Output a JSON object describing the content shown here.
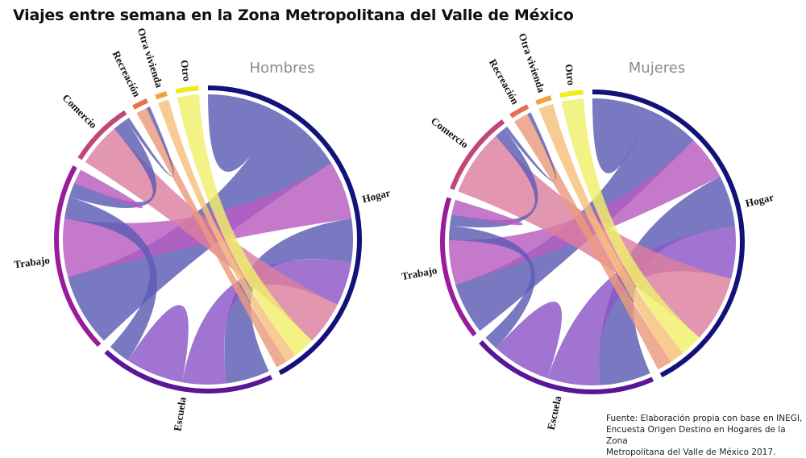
{
  "title": "Viajes entre semana en la Zona Metropolitana del Valle de México",
  "source": {
    "line1": "Fuente: Elaboración propia con base en INEGI,",
    "line2": "Encuesta Origen Destino en Hogares de la Zona",
    "line3": "Metropolitana del Valle de México 2017."
  },
  "chart_data": [
    {
      "type": "chord",
      "title": "Hombres",
      "sectors": [
        {
          "name": "Hogar",
          "ring": "#12127a",
          "chord": "#5c5cb4"
        },
        {
          "name": "Escuela",
          "ring": "#5a1699",
          "chord": "#8c55c8"
        },
        {
          "name": "Trabajo",
          "ring": "#9a1c9c",
          "chord": "#b85cc0"
        },
        {
          "name": "Comercio",
          "ring": "#c4457a",
          "chord": "#dc7f9f"
        },
        {
          "name": "Recreación",
          "ring": "#e8714c",
          "chord": "#ec9a7c"
        },
        {
          "name": "Otra vivienda",
          "ring": "#f4a233",
          "chord": "#f7c07a"
        },
        {
          "name": "Otro",
          "ring": "#eeee1e",
          "chord": "#efef6a"
        }
      ],
      "chords": [
        {
          "from": "Hogar",
          "to": "Hogar",
          "value": 5,
          "color": "Hogar"
        },
        {
          "from": "Hogar",
          "to": "Trabajo",
          "value": 10,
          "color": "Hogar"
        },
        {
          "from": "Trabajo",
          "to": "Hogar",
          "value": 8,
          "color": "Trabajo"
        },
        {
          "from": "Hogar",
          "to": "Escuela",
          "value": 6,
          "color": "Hogar"
        },
        {
          "from": "Escuela",
          "to": "Hogar",
          "value": 6,
          "color": "Escuela"
        },
        {
          "from": "Hogar",
          "to": "Comercio",
          "value": 6,
          "color": "Comercio"
        },
        {
          "from": "Hogar",
          "to": "Otro",
          "value": 3,
          "color": "Otro"
        },
        {
          "from": "Hogar",
          "to": "Otra vivienda",
          "value": 1.5,
          "color": "Otra vivienda"
        },
        {
          "from": "Hogar",
          "to": "Recreación",
          "value": 1.5,
          "color": "Recreación"
        },
        {
          "from": "Escuela",
          "to": "Escuela",
          "value": 4,
          "color": "Escuela"
        },
        {
          "from": "Trabajo",
          "to": "Escuela",
          "value": 3,
          "color": "Hogar"
        },
        {
          "from": "Trabajo",
          "to": "Comercio",
          "value": 2,
          "color": "Hogar"
        },
        {
          "from": "Trabajo",
          "to": "Trabajo",
          "value": 1,
          "color": "Trabajo"
        },
        {
          "from": "Comercio",
          "to": "Recreación",
          "value": 0.5,
          "color": "Hogar"
        }
      ]
    },
    {
      "type": "chord",
      "title": "Mujeres",
      "sectors": [
        {
          "name": "Hogar",
          "ring": "#12127a",
          "chord": "#5c5cb4"
        },
        {
          "name": "Escuela",
          "ring": "#5a1699",
          "chord": "#8c55c8"
        },
        {
          "name": "Trabajo",
          "ring": "#9a1c9c",
          "chord": "#b85cc0"
        },
        {
          "name": "Comercio",
          "ring": "#c4457a",
          "chord": "#dc7f9f"
        },
        {
          "name": "Recreación",
          "ring": "#e8714c",
          "chord": "#ec9a7c"
        },
        {
          "name": "Otra vivienda",
          "ring": "#f4a233",
          "chord": "#f7c07a"
        },
        {
          "name": "Otro",
          "ring": "#eeee1e",
          "chord": "#efef6a"
        }
      ],
      "chords": [
        {
          "from": "Hogar",
          "to": "Hogar",
          "value": 4,
          "color": "Hogar"
        },
        {
          "from": "Hogar",
          "to": "Trabajo",
          "value": 7,
          "color": "Hogar"
        },
        {
          "from": "Trabajo",
          "to": "Hogar",
          "value": 6,
          "color": "Trabajo"
        },
        {
          "from": "Hogar",
          "to": "Escuela",
          "value": 7,
          "color": "Hogar"
        },
        {
          "from": "Escuela",
          "to": "Hogar",
          "value": 7,
          "color": "Escuela"
        },
        {
          "from": "Hogar",
          "to": "Comercio",
          "value": 9,
          "color": "Comercio"
        },
        {
          "from": "Hogar",
          "to": "Otro",
          "value": 3,
          "color": "Otro"
        },
        {
          "from": "Hogar",
          "to": "Otra vivienda",
          "value": 2,
          "color": "Otra vivienda"
        },
        {
          "from": "Hogar",
          "to": "Recreación",
          "value": 2,
          "color": "Recreación"
        },
        {
          "from": "Escuela",
          "to": "Escuela",
          "value": 4,
          "color": "Escuela"
        },
        {
          "from": "Trabajo",
          "to": "Escuela",
          "value": 2,
          "color": "Hogar"
        },
        {
          "from": "Trabajo",
          "to": "Comercio",
          "value": 1.5,
          "color": "Hogar"
        },
        {
          "from": "Trabajo",
          "to": "Trabajo",
          "value": 1,
          "color": "Trabajo"
        },
        {
          "from": "Comercio",
          "to": "Recreación",
          "value": 0.5,
          "color": "Hogar"
        }
      ]
    }
  ]
}
